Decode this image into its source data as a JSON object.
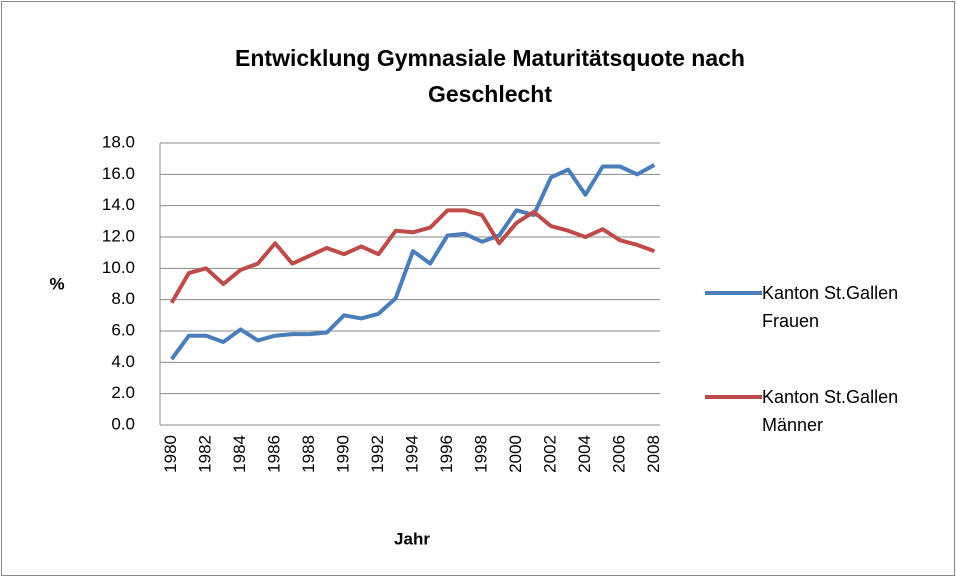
{
  "chart_data": {
    "type": "line",
    "title": "Entwicklung Gymnasiale Maturitätsquote nach Geschlecht",
    "xlabel": "Jahr",
    "ylabel": "%",
    "categories": [
      "1980",
      null,
      "1982",
      null,
      "1984",
      null,
      "1986",
      null,
      "1988",
      null,
      "1990",
      null,
      "1992",
      null,
      "1994",
      null,
      "1996",
      null,
      "1998",
      null,
      "2000",
      null,
      "2002",
      null,
      "2004",
      null,
      "2006",
      null,
      "2008"
    ],
    "series": [
      {
        "name": "Kanton St.Gallen Frauen",
        "color": "#4a7ebb",
        "values": [
          4.2,
          5.7,
          5.7,
          5.3,
          6.1,
          5.4,
          5.7,
          5.8,
          5.8,
          5.9,
          7.0,
          6.8,
          7.1,
          8.1,
          11.1,
          10.3,
          12.1,
          12.2,
          11.7,
          12.1,
          13.7,
          13.4,
          15.8,
          16.3,
          14.7,
          16.5,
          16.5,
          16.0,
          16.6
        ]
      },
      {
        "name": "Kanton St.Gallen Männer",
        "color": "#be4b48",
        "values": [
          7.8,
          9.7,
          10.0,
          9.0,
          9.9,
          10.3,
          11.6,
          10.3,
          10.8,
          11.3,
          10.9,
          11.4,
          10.9,
          12.4,
          12.3,
          12.6,
          13.7,
          13.7,
          13.4,
          11.6,
          12.9,
          13.6,
          12.7,
          12.4,
          12.0,
          12.5,
          11.8,
          11.5,
          11.1
        ]
      }
    ],
    "ylim": [
      0,
      18
    ],
    "yticks": [
      {
        "value": 0,
        "label": "0.0"
      },
      {
        "value": 2,
        "label": "2.0"
      },
      {
        "value": 4,
        "label": "4.0"
      },
      {
        "value": 6,
        "label": "6.0"
      },
      {
        "value": 8,
        "label": "8.0"
      },
      {
        "value": 10,
        "label": "10.0"
      },
      {
        "value": 12,
        "label": "12.0"
      },
      {
        "value": 14,
        "label": "14.0"
      },
      {
        "value": 16,
        "label": "16.0"
      },
      {
        "value": 18,
        "label": "18.0"
      }
    ],
    "grid": true,
    "legend": "right"
  }
}
